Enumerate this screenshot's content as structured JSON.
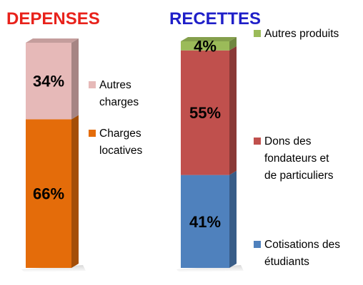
{
  "chart_data": [
    {
      "type": "bar",
      "stacked": true,
      "title": "DEPENSES",
      "title_color": "#e8221b",
      "unit": "%",
      "segments": [
        {
          "name": "Charges locatives",
          "value": 66,
          "label": "66%",
          "color": "#e46c0a",
          "legend_lines": [
            "Charges",
            "locatives"
          ]
        },
        {
          "name": "Autres charges",
          "value": 34,
          "label": "34%",
          "color": "#e6b9b8",
          "legend_lines": [
            "Autres",
            "charges"
          ]
        }
      ]
    },
    {
      "type": "bar",
      "stacked": true,
      "title": "RECETTES",
      "title_color": "#1f1fc8",
      "unit": "%",
      "segments": [
        {
          "name": "Cotisations des étudiants",
          "value": 41,
          "label": "41%",
          "color": "#4f81bd",
          "legend_lines": [
            "Cotisations des",
            "étudiants"
          ]
        },
        {
          "name": "Dons des fondateurs et de particuliers",
          "value": 55,
          "label": "55%",
          "color": "#c0504d",
          "legend_lines": [
            "Dons des",
            "fondateurs et",
            "de particuliers"
          ]
        },
        {
          "name": "Autres produits",
          "value": 4,
          "label": "4%",
          "color": "#9bbb59",
          "legend_lines": [
            "Autres produits"
          ]
        }
      ]
    }
  ]
}
